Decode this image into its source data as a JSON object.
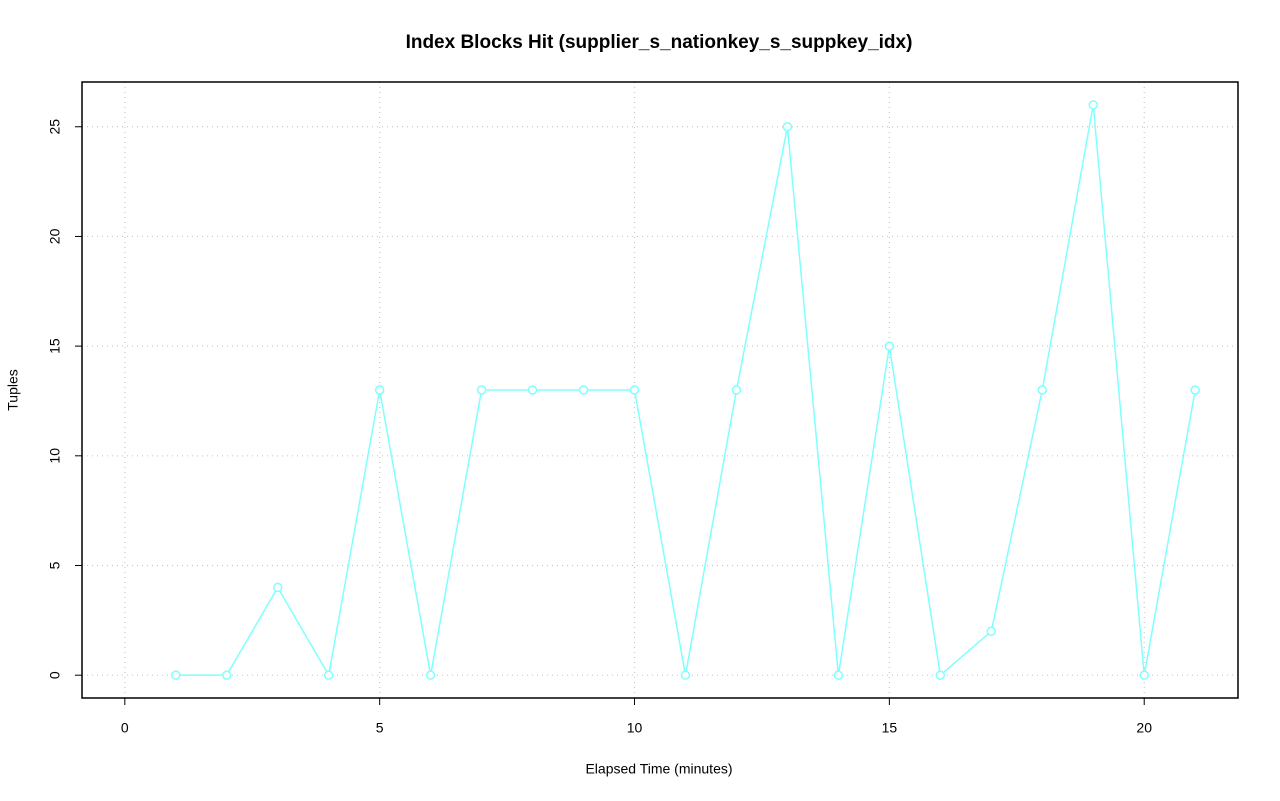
{
  "chart_data": {
    "type": "line",
    "title": "Index Blocks Hit (supplier_s_nationkey_s_suppkey_idx)",
    "x_label": "Elapsed Time (minutes)",
    "y_label": "Tuples",
    "x": [
      1,
      2,
      3,
      4,
      5,
      6,
      7,
      8,
      9,
      10,
      11,
      12,
      13,
      14,
      15,
      16,
      17,
      18,
      19,
      20,
      21
    ],
    "values": [
      0,
      0,
      4,
      0,
      13,
      0,
      13,
      13,
      13,
      13,
      0,
      13,
      25,
      0,
      15,
      0,
      2,
      13,
      26,
      0,
      13
    ],
    "color": "#80ffff",
    "xlim": [
      -0.84,
      21.84
    ],
    "xticks": [
      0,
      5,
      10,
      15,
      20
    ],
    "ylim": [
      -1.04,
      27.04
    ],
    "yticks": [
      0,
      5,
      10,
      15,
      20,
      25
    ],
    "grid": true
  }
}
